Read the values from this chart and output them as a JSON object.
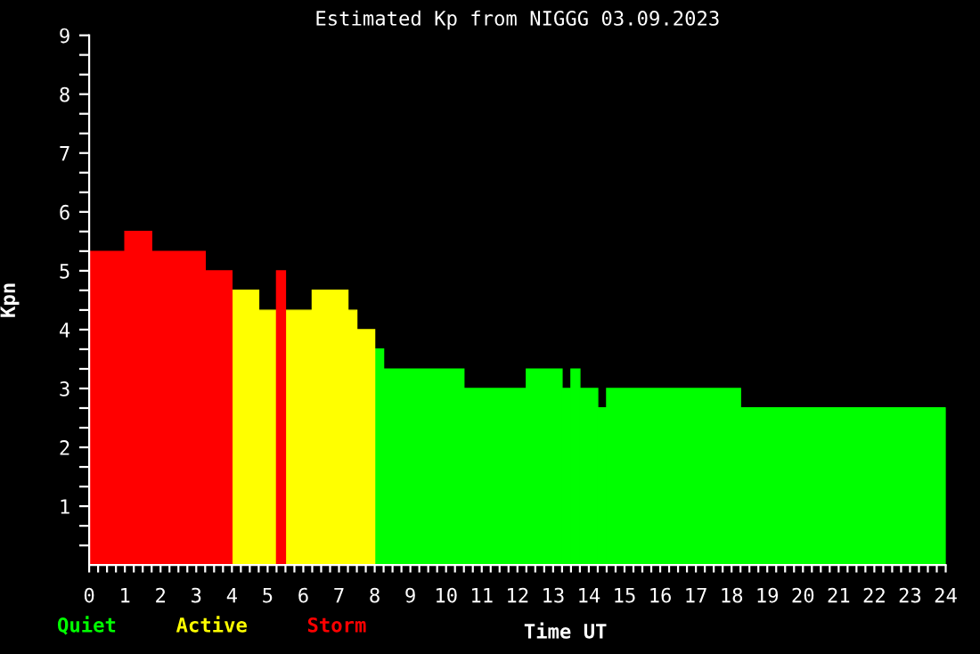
{
  "chart_data": {
    "type": "histogram",
    "title": "Estimated Kp from NIGGG 03.09.2023",
    "xlabel": "Time UT",
    "ylabel": "Kpn",
    "bins": [
      0,
      1,
      1.75,
      3.25,
      4,
      4.75,
      5.25,
      5.5,
      6.25,
      7.25,
      7.5,
      8,
      8.25,
      10.5,
      12.25,
      13.25,
      13.5,
      13.75,
      14.25,
      14.5,
      18.25,
      24
    ],
    "series": [
      {
        "name": "Quiet",
        "color": "#00ff00",
        "values": [
          null,
          null,
          null,
          null,
          null,
          null,
          null,
          null,
          null,
          null,
          null,
          3.67,
          3.33,
          3.0,
          3.33,
          3.0,
          3.33,
          3.0,
          2.67,
          3.0,
          2.67
        ]
      },
      {
        "name": "Active",
        "color": "#ffff00",
        "values": [
          null,
          null,
          null,
          null,
          4.67,
          4.33,
          null,
          4.33,
          4.67,
          4.33,
          4.0,
          null,
          null,
          null,
          null,
          null,
          null,
          null,
          null,
          null,
          null
        ]
      },
      {
        "name": "Storm",
        "color": "#ff0000",
        "values": [
          5.33,
          5.67,
          5.33,
          5.0,
          null,
          null,
          5.0,
          null,
          null,
          null,
          null,
          null,
          null,
          null,
          null,
          null,
          null,
          null,
          null,
          null,
          null
        ]
      }
    ],
    "xlim": [
      0,
      24
    ],
    "ylim": [
      0,
      9
    ],
    "xticks": [
      0,
      1,
      2,
      3,
      4,
      5,
      6,
      7,
      8,
      9,
      10,
      11,
      12,
      13,
      14,
      15,
      16,
      17,
      18,
      19,
      20,
      21,
      22,
      23,
      24,
      {
        "value": 0.25,
        "label": null
      },
      {
        "value": 0.5,
        "label": null
      },
      {
        "value": 0.75,
        "label": null
      },
      {
        "value": 1.25,
        "label": null
      },
      {
        "value": 1.5,
        "label": null
      },
      {
        "value": 1.75,
        "label": null
      },
      {
        "value": 2.25,
        "label": null
      },
      {
        "value": 2.5,
        "label": null
      },
      {
        "value": 2.75,
        "label": null
      },
      {
        "value": 3.25,
        "label": null
      },
      {
        "value": 3.5,
        "label": null
      },
      {
        "value": 3.75,
        "label": null
      },
      {
        "value": 4.25,
        "label": null
      },
      {
        "value": 4.5,
        "label": null
      },
      {
        "value": 4.75,
        "label": null
      },
      {
        "value": 5.25,
        "label": null
      },
      {
        "value": 5.5,
        "label": null
      },
      {
        "value": 5.75,
        "label": null
      },
      {
        "value": 6.25,
        "label": null
      },
      {
        "value": 6.5,
        "label": null
      },
      {
        "value": 6.75,
        "label": null
      },
      {
        "value": 7.25,
        "label": null
      },
      {
        "value": 7.5,
        "label": null
      },
      {
        "value": 7.75,
        "label": null
      },
      {
        "value": 8.25,
        "label": null
      },
      {
        "value": 8.5,
        "label": null
      },
      {
        "value": 8.75,
        "label": null
      },
      {
        "value": 9.25,
        "label": null
      },
      {
        "value": 9.5,
        "label": null
      },
      {
        "value": 9.75,
        "label": null
      },
      {
        "value": 10.25,
        "label": null
      },
      {
        "value": 10.5,
        "label": null
      },
      {
        "value": 10.75,
        "label": null
      },
      {
        "value": 11.25,
        "label": null
      },
      {
        "value": 11.5,
        "label": null
      },
      {
        "value": 11.75,
        "label": null
      },
      {
        "value": 12.25,
        "label": null
      },
      {
        "value": 12.5,
        "label": null
      },
      {
        "value": 12.75,
        "label": null
      },
      {
        "value": 13.25,
        "label": null
      },
      {
        "value": 13.5,
        "label": null
      },
      {
        "value": 13.75,
        "label": null
      },
      {
        "value": 14.25,
        "label": null
      },
      {
        "value": 14.5,
        "label": null
      },
      {
        "value": 14.75,
        "label": null
      },
      {
        "value": 15.25,
        "label": null
      },
      {
        "value": 15.5,
        "label": null
      },
      {
        "value": 15.75,
        "label": null
      },
      {
        "value": 16.25,
        "label": null
      },
      {
        "value": 16.5,
        "label": null
      },
      {
        "value": 16.75,
        "label": null
      },
      {
        "value": 17.25,
        "label": null
      },
      {
        "value": 17.5,
        "label": null
      },
      {
        "value": 17.75,
        "label": null
      },
      {
        "value": 18.25,
        "label": null
      },
      {
        "value": 18.5,
        "label": null
      },
      {
        "value": 18.75,
        "label": null
      },
      {
        "value": 19.25,
        "label": null
      },
      {
        "value": 19.5,
        "label": null
      },
      {
        "value": 19.75,
        "label": null
      },
      {
        "value": 20.25,
        "label": null
      },
      {
        "value": 20.5,
        "label": null
      },
      {
        "value": 20.75,
        "label": null
      },
      {
        "value": 21.25,
        "label": null
      },
      {
        "value": 21.5,
        "label": null
      },
      {
        "value": 21.75,
        "label": null
      },
      {
        "value": 22.25,
        "label": null
      },
      {
        "value": 22.5,
        "label": null
      },
      {
        "value": 22.75,
        "label": null
      },
      {
        "value": 23.25,
        "label": null
      },
      {
        "value": 23.5,
        "label": null
      },
      {
        "value": 23.75,
        "label": null
      }
    ],
    "yticks": [
      1,
      2,
      3,
      4,
      5,
      6,
      7,
      8,
      9,
      {
        "value": 0.333,
        "label": null
      },
      {
        "value": 0.667,
        "label": null
      },
      {
        "value": 1.333,
        "label": null
      },
      {
        "value": 1.667,
        "label": null
      },
      {
        "value": 2.333,
        "label": null
      },
      {
        "value": 2.667,
        "label": null
      },
      {
        "value": 3.333,
        "label": null
      },
      {
        "value": 3.667,
        "label": null
      },
      {
        "value": 4.333,
        "label": null
      },
      {
        "value": 4.667,
        "label": null
      },
      {
        "value": 5.333,
        "label": null
      },
      {
        "value": 5.667,
        "label": null
      },
      {
        "value": 6.333,
        "label": null
      },
      {
        "value": 6.667,
        "label": null
      },
      {
        "value": 7.333,
        "label": null
      },
      {
        "value": 7.667,
        "label": null
      },
      {
        "value": 8.333,
        "label": null
      },
      {
        "value": 8.667,
        "label": null
      }
    ],
    "legend": "bottom left",
    "grid": false
  }
}
